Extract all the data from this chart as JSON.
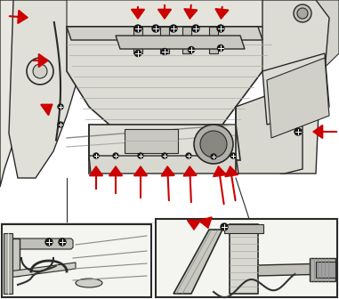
{
  "bg_color": "#ffffff",
  "line_color": "#2a2a2a",
  "arrow_color": "#cc0000",
  "fig_w": 3.81,
  "fig_h": 3.36,
  "dpi": 100,
  "main_bg": "#f0f0ec",
  "gray1": "#d8d8d0",
  "gray2": "#c8c8c0",
  "gray3": "#b8b8b0",
  "gray4": "#e8e8e4",
  "inset_bg": "#f4f4f0"
}
